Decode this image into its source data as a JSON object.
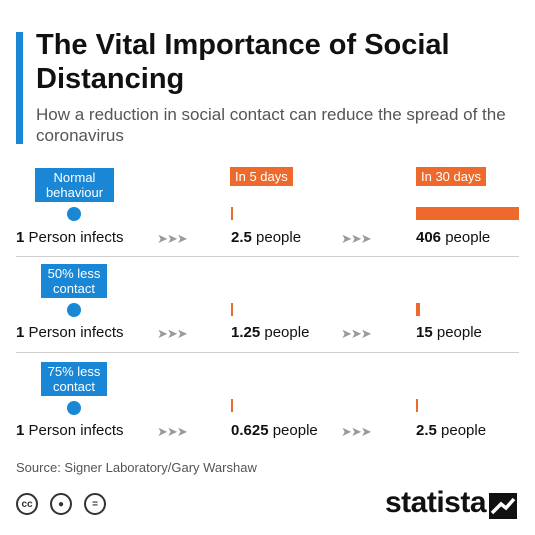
{
  "header": {
    "title": "The Vital Importance of Social Distancing",
    "subtitle": "How a reduction in social contact can reduce the spread of the coronavirus"
  },
  "columns": {
    "day5": "In 5 days",
    "day30": "In 30 days"
  },
  "scenarios": [
    {
      "label": "Normal behaviour",
      "start_bold": "1",
      "start_rest": " Person infects",
      "day5_value": "2.5",
      "day30_value": "406",
      "unit": " people"
    },
    {
      "label": "50% less contact",
      "start_bold": "1",
      "start_rest": " Person infects",
      "day5_value": "1.25",
      "day30_value": "15",
      "unit": " people"
    },
    {
      "label": "75% less contact",
      "start_bold": "1",
      "start_rest": " Person infects",
      "day5_value": "0.625",
      "day30_value": "2.5",
      "unit": " people"
    }
  ],
  "arrows": "➤➤➤",
  "chart_data": {
    "type": "bar",
    "title": "The Vital Importance of Social Distancing",
    "subtitle": "How a reduction in social contact can reduce the spread of the coronavirus",
    "categories": [
      "Normal behaviour",
      "50% less contact",
      "75% less contact"
    ],
    "series": [
      {
        "name": "In 5 days",
        "values": [
          2.5,
          1.25,
          0.625
        ]
      },
      {
        "name": "In 30 days",
        "values": [
          406,
          15,
          2.5
        ]
      }
    ],
    "xlabel": "",
    "ylabel": ""
  },
  "colors": {
    "accent": "#1a87d6",
    "bar": "#ee6a2c"
  },
  "footer": {
    "source": "Source: Signer Laboratory/Gary Warshaw",
    "brand": "statista",
    "icons": [
      "cc-icon",
      "by-icon",
      "nd-icon"
    ]
  }
}
